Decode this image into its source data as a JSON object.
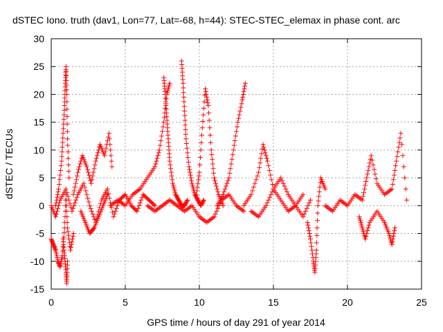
{
  "chart_data": {
    "type": "scatter",
    "title": "dSTEC Iono. truth (dav1, Lon=77, Lat=-68, h=44): STEC-STEC_elemax in phase cont. arc",
    "xlabel": "GPS time / hours of day 291 of year 2014",
    "ylabel": "dSTEC  / TECUs",
    "xlim": [
      0,
      25
    ],
    "ylim": [
      -15,
      30
    ],
    "x_ticks": [
      "0",
      "5",
      "10",
      "15",
      "20",
      "25"
    ],
    "y_ticks": [
      "-15",
      "-10",
      "-5",
      "0",
      "5",
      "10",
      "15",
      "20",
      "25",
      "30"
    ],
    "grid": true,
    "legend": "none",
    "marker": "plus",
    "color": "#ff0000",
    "series": [
      {
        "arcs": [
          {
            "x": [
              0.0,
              0.15,
              0.3,
              0.45,
              0.6,
              0.75,
              0.9,
              1.0,
              1.1,
              1.3,
              1.5
            ],
            "y": [
              -6,
              -7,
              -8,
              -10,
              -11,
              -9,
              -4,
              2,
              -4,
              -8,
              -5
            ]
          },
          {
            "x": [
              0.3,
              0.5,
              0.7,
              0.8,
              0.9,
              0.95,
              1.0,
              1.05,
              1.1,
              1.2
            ],
            "y": [
              0,
              3,
              8,
              13,
              18,
              22,
              25,
              20,
              12,
              5
            ]
          },
          {
            "x": [
              0.8,
              0.9,
              1.0,
              1.05,
              1.1
            ],
            "y": [
              -6,
              -9,
              -12,
              -14,
              -10
            ]
          },
          {
            "x": [
              0.0,
              0.3,
              0.6,
              1.0,
              1.4,
              1.8,
              2.2,
              2.6,
              3.0,
              3.4,
              3.8,
              4.2,
              4.6,
              5.0,
              5.4,
              5.8,
              6.2,
              6.6,
              7.0
            ],
            "y": [
              0,
              -2,
              1,
              3,
              -1,
              2,
              4,
              0,
              -3,
              1,
              3,
              -2,
              1,
              2,
              0,
              -1,
              2,
              1,
              0
            ]
          },
          {
            "x": [
              1.5,
              1.8,
              2.1,
              2.4,
              2.7,
              3.0,
              3.3,
              3.6,
              3.9,
              4.1
            ],
            "y": [
              2,
              6,
              9,
              7,
              4,
              8,
              11,
              9,
              13,
              7
            ]
          },
          {
            "x": [
              2.0,
              2.3,
              2.6,
              2.9,
              3.2,
              3.5,
              3.8
            ],
            "y": [
              -1,
              -3,
              -5,
              -4,
              -2,
              0,
              2
            ]
          },
          {
            "x": [
              4.0,
              4.5,
              5.0,
              5.5,
              6.0,
              6.5,
              7.0,
              7.3,
              7.6,
              7.8,
              8.0
            ],
            "y": [
              0,
              1,
              0,
              2,
              3,
              5,
              7,
              10,
              15,
              20,
              22
            ]
          },
          {
            "x": [
              7.6,
              7.7,
              7.8,
              7.9,
              8.0,
              8.2,
              8.4,
              8.6,
              8.8,
              9.0,
              9.2
            ],
            "y": [
              23,
              20,
              16,
              12,
              8,
              4,
              2,
              1,
              0,
              0,
              1
            ]
          },
          {
            "x": [
              8.8,
              8.9,
              9.0,
              9.1,
              9.3,
              9.5,
              9.7,
              9.9,
              10.1,
              10.3
            ],
            "y": [
              26,
              22,
              17,
              12,
              7,
              4,
              2,
              1,
              0,
              1
            ]
          },
          {
            "x": [
              9.8,
              10.0,
              10.2,
              10.4,
              10.6,
              10.8,
              11.0,
              11.3,
              11.6
            ],
            "y": [
              2,
              6,
              14,
              21,
              18,
              10,
              5,
              2,
              0
            ]
          },
          {
            "x": [
              11.2,
              11.6,
              12.0,
              12.3,
              12.6,
              12.9,
              13.1
            ],
            "y": [
              0,
              2,
              5,
              10,
              15,
              19,
              22
            ]
          },
          {
            "x": [
              6.5,
              7.0,
              7.5,
              8.0,
              8.5,
              9.0,
              9.5,
              10.0,
              10.5,
              11.0,
              11.5,
              12.0,
              12.5,
              13.0
            ],
            "y": [
              0,
              -1,
              0,
              1,
              0,
              -1,
              0,
              -2,
              -3,
              -2,
              1,
              2,
              0,
              -1
            ]
          },
          {
            "x": [
              13.0,
              13.5,
              14.0,
              14.3,
              14.6,
              15.0,
              15.5,
              16.0,
              16.5,
              17.0
            ],
            "y": [
              0,
              2,
              6,
              11,
              8,
              3,
              1,
              -1,
              0,
              2
            ]
          },
          {
            "x": [
              13.5,
              14.0,
              14.5,
              15.0,
              15.5,
              16.0,
              16.5,
              17.0,
              17.5
            ],
            "y": [
              -1,
              -2,
              0,
              3,
              5,
              2,
              0,
              -2,
              1
            ]
          },
          {
            "x": [
              17.3,
              17.5,
              17.7,
              17.8,
              17.9,
              18.0,
              18.2,
              18.5
            ],
            "y": [
              -3,
              -6,
              -10,
              -12,
              -8,
              0,
              5,
              3
            ]
          },
          {
            "x": [
              18.5,
              19.0,
              19.5,
              20.0,
              20.5,
              21.0,
              21.3,
              21.6,
              22.0,
              22.5,
              23.0,
              23.3,
              23.6,
              24.0
            ],
            "y": [
              0,
              -1,
              1,
              0,
              2,
              1,
              5,
              9,
              4,
              2,
              3,
              8,
              13,
              1
            ]
          },
          {
            "x": [
              20.8,
              21.0,
              21.2,
              21.5,
              22.0,
              22.5,
              22.8,
              23.0,
              23.2
            ],
            "y": [
              -2,
              -4,
              -6,
              -3,
              -1,
              -3,
              -5,
              -7,
              -4
            ]
          }
        ]
      }
    ]
  }
}
